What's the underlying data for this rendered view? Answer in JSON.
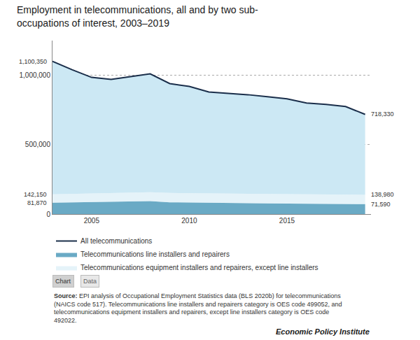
{
  "chart_data": {
    "type": "area",
    "title": "Employment in telecommunications, all and by two sub-\noccupations of interest, 2003–2019",
    "x": [
      2003,
      2004,
      2005,
      2006,
      2007,
      2008,
      2009,
      2010,
      2011,
      2012,
      2013,
      2014,
      2015,
      2016,
      2017,
      2018,
      2019
    ],
    "series": [
      {
        "name": "Telecommunications equipment installers and repairers, except line installers",
        "type": "area",
        "color": "#cce8f4",
        "values": [
          142150,
          145000,
          148000,
          152000,
          155000,
          158000,
          152000,
          150000,
          148000,
          147000,
          146000,
          145000,
          144000,
          143000,
          142000,
          141000,
          138980
        ],
        "value_labels": [
          "142,150",
          null,
          null,
          null,
          null,
          null,
          null,
          null,
          null,
          null,
          null,
          null,
          null,
          null,
          null,
          null,
          "138,980"
        ]
      },
      {
        "name": "Telecommunications line installers and repairers",
        "type": "area",
        "color": "#6aaac5",
        "values": [
          81870,
          84000,
          87000,
          89000,
          91000,
          93000,
          85000,
          83000,
          80000,
          79000,
          78000,
          77000,
          76000,
          75000,
          74000,
          73000,
          71590
        ],
        "value_labels": [
          "81,870",
          null,
          null,
          null,
          null,
          null,
          null,
          null,
          null,
          null,
          null,
          null,
          null,
          null,
          null,
          null,
          "71,590"
        ]
      },
      {
        "name": "All telecommunications",
        "type": "line",
        "color": "#1a2e4a",
        "values": [
          1100350,
          1040000,
          985000,
          970000,
          990000,
          1010000,
          940000,
          920000,
          880000,
          870000,
          860000,
          845000,
          830000,
          800000,
          790000,
          775000,
          718330
        ],
        "value_labels": [
          "1,100,350",
          null,
          null,
          null,
          null,
          null,
          null,
          null,
          null,
          null,
          null,
          null,
          null,
          null,
          null,
          null,
          "718,330"
        ]
      }
    ],
    "xlim": [
      2003,
      2019.3
    ],
    "xticks": [
      2005,
      2010,
      2015
    ],
    "ylim": [
      0,
      1250000
    ],
    "yticks": [
      0,
      {
        "value": 500000,
        "label": "500,000"
      },
      {
        "value": 1000000,
        "label": "1,000,000"
      }
    ],
    "grid": true,
    "legend": "bottom",
    "buttons": [
      "Chart",
      "Data"
    ],
    "source": {
      "label": "Source:",
      "text": " EPI analysis of Occupational Employment Statistics data (BLS 2020b) for telecommunications\n(NAICS code 517). Telecommunications line installers and repairers category is OES code 499052, and\ntelecommunications equipment installers and repairers, except line installers category is OES code\n492022."
    },
    "credit": "Economic Policy Institute"
  }
}
